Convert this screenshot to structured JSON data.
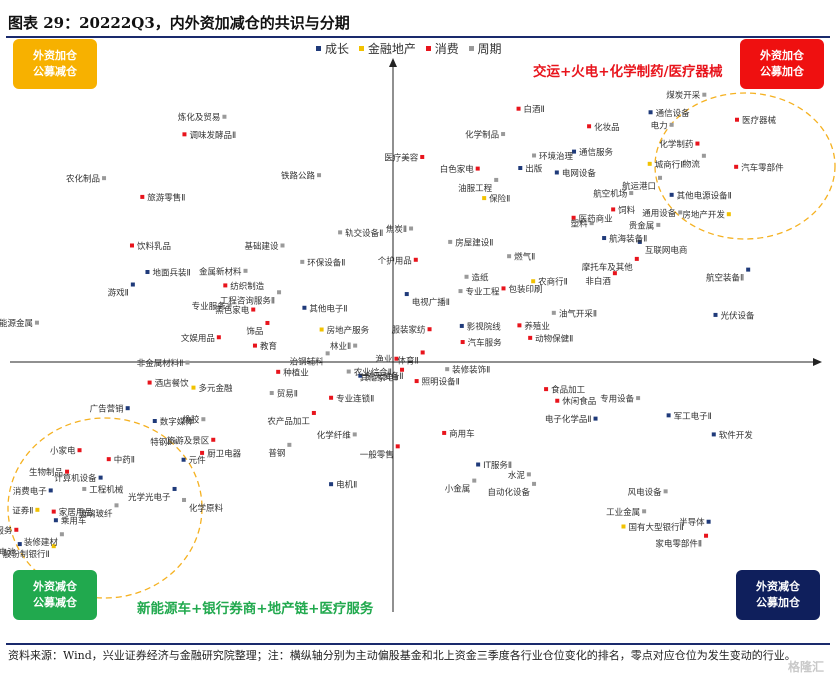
{
  "title": "图表 29：20222Q3，内外资加减仓的共识与分期",
  "legend": [
    {
      "label": "成长",
      "color": "#1f3a7a"
    },
    {
      "label": "金融地产",
      "color": "#f2c200"
    },
    {
      "label": "消费",
      "color": "#e8141c"
    },
    {
      "label": "周期",
      "color": "#9a9a9a"
    }
  ],
  "quadrants": {
    "top_left": {
      "line1": "外资加仓",
      "line2": "公募减仓",
      "color": "#f7b100"
    },
    "top_right": {
      "line1": "外资加仓",
      "line2": "公募加仓",
      "color": "#ef1010"
    },
    "bottom_left": {
      "line1": "外资减仓",
      "line2": "公募减仓",
      "color": "#21a94e"
    },
    "bottom_right": {
      "line1": "外资减仓",
      "line2": "公募加仓",
      "color": "#0f1f5c"
    }
  },
  "callouts": {
    "top": {
      "text": "交运+火电+化学制药/医疗器械",
      "color": "#e8141c"
    },
    "bottom": {
      "text": "新能源车+银行券商+地产链+医疗服务",
      "color": "#21a94e"
    }
  },
  "chart_data": {
    "type": "scatter",
    "xlabel": "",
    "ylabel": "",
    "xlim": [
      -100,
      100
    ],
    "ylim": [
      -100,
      100
    ],
    "grid": false,
    "legend_position": "top-center",
    "categories": [
      "成长",
      "金融地产",
      "消费",
      "周期"
    ],
    "points": [
      {
        "name": "炼化及贸易",
        "cat": "周期",
        "x": -39.2,
        "y": 82.3
      },
      {
        "name": "调味发酵品Ⅱ",
        "cat": "消费",
        "x": -48.5,
        "y": 76.4
      },
      {
        "name": "农化制品",
        "cat": "周期",
        "x": -67.2,
        "y": 61.7
      },
      {
        "name": "旅游零售Ⅱ",
        "cat": "消费",
        "x": -58.3,
        "y": 55.4
      },
      {
        "name": "铁路公路",
        "cat": "周期",
        "x": -17.2,
        "y": 62.7
      },
      {
        "name": "饮料乳品",
        "cat": "消费",
        "x": -60.7,
        "y": 39.1
      },
      {
        "name": "基础建设",
        "cat": "周期",
        "x": -25.7,
        "y": 39.1
      },
      {
        "name": "轨交设备Ⅱ",
        "cat": "周期",
        "x": -12.3,
        "y": 43.5
      },
      {
        "name": "环保设备Ⅱ",
        "cat": "周期",
        "x": -21.1,
        "y": 33.6
      },
      {
        "name": "地面兵装Ⅱ",
        "cat": "成长",
        "x": -57.1,
        "y": 30.2
      },
      {
        "name": "金属新材料",
        "cat": "周期",
        "x": -34.3,
        "y": 30.6
      },
      {
        "name": "游戏Ⅱ",
        "cat": "成长",
        "x": -60.5,
        "y": 26.0
      },
      {
        "name": "纺织制造",
        "cat": "消费",
        "x": -39.0,
        "y": 25.7
      },
      {
        "name": "工程咨询服务Ⅱ",
        "cat": "周期",
        "x": -26.5,
        "y": 23.4
      },
      {
        "name": "专业服务",
        "cat": "周期",
        "x": -38.0,
        "y": 19.0
      },
      {
        "name": "黑色家电",
        "cat": "消费",
        "x": -32.5,
        "y": 17.6
      },
      {
        "name": "其他电子Ⅱ",
        "cat": "成长",
        "x": -20.6,
        "y": 18.2
      },
      {
        "name": "饰品",
        "cat": "消费",
        "x": -29.2,
        "y": 13.1
      },
      {
        "name": "能源金属",
        "cat": "周期",
        "x": -82.8,
        "y": 13.2
      },
      {
        "name": "房地产服务",
        "cat": "金融地产",
        "x": -16.6,
        "y": 10.9
      },
      {
        "name": "文娱用品",
        "cat": "消费",
        "x": -40.5,
        "y": 8.3
      },
      {
        "name": "教育",
        "cat": "消费",
        "x": -32.1,
        "y": 5.5
      },
      {
        "name": "林业Ⅱ",
        "cat": "周期",
        "x": -8.8,
        "y": 5.5
      },
      {
        "name": "治钢辅料",
        "cat": "周期",
        "x": -15.2,
        "y": 2.9
      },
      {
        "name": "非金属材料Ⅱ",
        "cat": "周期",
        "x": -47.8,
        "y": -0.2
      },
      {
        "name": "渔业",
        "cat": "消费",
        "x": 0.8,
        "y": 1.1
      },
      {
        "name": "种植业",
        "cat": "消费",
        "x": -26.7,
        "y": -3.3
      },
      {
        "name": "酒店餐饮",
        "cat": "消费",
        "x": -56.6,
        "y": -6.9
      },
      {
        "name": "多元金融",
        "cat": "金融地产",
        "x": -46.4,
        "y": -8.6
      },
      {
        "name": "农业综合Ⅱ",
        "cat": "周期",
        "x": -10.3,
        "y": -3.2
      },
      {
        "name": "航天装备Ⅱ",
        "cat": "成长",
        "x": -7.6,
        "y": -4.6
      },
      {
        "name": "贸易Ⅱ",
        "cat": "周期",
        "x": -28.2,
        "y": -10.4
      },
      {
        "name": "专业连锁Ⅱ",
        "cat": "消费",
        "x": -14.4,
        "y": -12.0
      },
      {
        "name": "农产品加工",
        "cat": "消费",
        "x": -18.4,
        "y": -17.1
      },
      {
        "name": "广告营销",
        "cat": "成长",
        "x": -61.7,
        "y": -15.5
      },
      {
        "name": "数字媒体",
        "cat": "成长",
        "x": -55.4,
        "y": -19.8
      },
      {
        "name": "橡胶",
        "cat": "周期",
        "x": -44.1,
        "y": -19.2
      },
      {
        "name": "特钢Ⅱ",
        "cat": "周期",
        "x": -50.6,
        "y": -26.7
      },
      {
        "name": "旅游及景区",
        "cat": "消费",
        "x": -41.8,
        "y": -26.1
      },
      {
        "name": "化学纤维",
        "cat": "周期",
        "x": -8.9,
        "y": -24.3
      },
      {
        "name": "普钢",
        "cat": "周期",
        "x": -24.1,
        "y": -27.8
      },
      {
        "name": "厨卫电器",
        "cat": "消费",
        "x": -44.4,
        "y": -30.5
      },
      {
        "name": "元件",
        "cat": "成长",
        "x": -48.7,
        "y": -32.8
      },
      {
        "name": "小家电",
        "cat": "消费",
        "x": -72.9,
        "y": -29.6
      },
      {
        "name": "中药Ⅱ",
        "cat": "消费",
        "x": -66.1,
        "y": -32.6
      },
      {
        "name": "生物制品",
        "cat": "消费",
        "x": -75.8,
        "y": -36.8
      },
      {
        "name": "计算机设备",
        "cat": "成长",
        "x": -68.0,
        "y": -38.8
      },
      {
        "name": "消费电子",
        "cat": "成长",
        "x": -79.6,
        "y": -43.1
      },
      {
        "name": "工程机械",
        "cat": "周期",
        "x": -71.8,
        "y": -42.6
      },
      {
        "name": "光学光电子",
        "cat": "成长",
        "x": -50.8,
        "y": -42.6
      },
      {
        "name": "化学原料",
        "cat": "周期",
        "x": -48.6,
        "y": -46.3
      },
      {
        "name": "玻璃玻纤",
        "cat": "周期",
        "x": -64.3,
        "y": -48.1
      },
      {
        "name": "证券Ⅱ",
        "cat": "金融地产",
        "x": -82.7,
        "y": -49.6
      },
      {
        "name": "家居用品",
        "cat": "消费",
        "x": -78.9,
        "y": -50.2
      },
      {
        "name": "乘用车",
        "cat": "成长",
        "x": -78.4,
        "y": -53.1
      },
      {
        "name": "医疗服务",
        "cat": "消费",
        "x": -87.6,
        "y": -56.3
      },
      {
        "name": "装修建材",
        "cat": "周期",
        "x": -77.0,
        "y": -57.8
      },
      {
        "name": "电池",
        "cat": "成长",
        "x": -86.8,
        "y": -61.1
      },
      {
        "name": "股份制银行Ⅱ",
        "cat": "金融地产",
        "x": -78.9,
        "y": -61.8
      },
      {
        "name": "电机Ⅱ",
        "cat": "成长",
        "x": -14.4,
        "y": -41.0
      },
      {
        "name": "白酒Ⅱ",
        "cat": "消费",
        "x": 29.2,
        "y": 85.0
      },
      {
        "name": "化学制品",
        "cat": "周期",
        "x": 25.6,
        "y": 76.5
      },
      {
        "name": "化妆品",
        "cat": "消费",
        "x": 45.6,
        "y": 79.1
      },
      {
        "name": "通信服务",
        "cat": "成长",
        "x": 42.1,
        "y": 70.6
      },
      {
        "name": "白色家电",
        "cat": "消费",
        "x": 19.7,
        "y": 64.9
      },
      {
        "name": "医疗美容",
        "cat": "消费",
        "x": 6.8,
        "y": 68.8
      },
      {
        "name": "出版",
        "cat": "成长",
        "x": 29.6,
        "y": 65.1
      },
      {
        "name": "环境治理",
        "cat": "周期",
        "x": 32.8,
        "y": 69.3
      },
      {
        "name": "电网设备",
        "cat": "成长",
        "x": 38.1,
        "y": 63.6
      },
      {
        "name": "油服工程",
        "cat": "周期",
        "x": 24.0,
        "y": 61.1
      },
      {
        "name": "保险Ⅱ",
        "cat": "金融地产",
        "x": 21.2,
        "y": 55.0
      },
      {
        "name": "航空机场",
        "cat": "周期",
        "x": 55.4,
        "y": 56.7
      },
      {
        "name": "医药商业",
        "cat": "消费",
        "x": 42.0,
        "y": 48.4
      },
      {
        "name": "饲料",
        "cat": "消费",
        "x": 51.2,
        "y": 51.2
      },
      {
        "name": "塑料",
        "cat": "周期",
        "x": 46.2,
        "y": 46.6
      },
      {
        "name": "航海装备Ⅱ",
        "cat": "成长",
        "x": 49.1,
        "y": 41.6
      },
      {
        "name": "焦炭Ⅱ",
        "cat": "周期",
        "x": 4.2,
        "y": 44.8
      },
      {
        "name": "房屋建设Ⅱ",
        "cat": "周期",
        "x": 13.3,
        "y": 40.3
      },
      {
        "name": "个护用品",
        "cat": "消费",
        "x": 5.3,
        "y": 34.3
      },
      {
        "name": "燃气Ⅱ",
        "cat": "周期",
        "x": 27.0,
        "y": 35.5
      },
      {
        "name": "非白酒",
        "cat": "消费",
        "x": 51.6,
        "y": 29.8
      },
      {
        "name": "造纸",
        "cat": "周期",
        "x": 17.1,
        "y": 28.6
      },
      {
        "name": "农商行Ⅱ",
        "cat": "金融地产",
        "x": 32.6,
        "y": 27.1
      },
      {
        "name": "电视广播Ⅱ",
        "cat": "成长",
        "x": 3.2,
        "y": 22.8
      },
      {
        "name": "专业工程",
        "cat": "周期",
        "x": 15.7,
        "y": 23.8
      },
      {
        "name": "包装印刷",
        "cat": "消费",
        "x": 25.7,
        "y": 24.7
      },
      {
        "name": "油气开采Ⅱ",
        "cat": "周期",
        "x": 37.4,
        "y": 16.5
      },
      {
        "name": "服装家纺",
        "cat": "消费",
        "x": 8.5,
        "y": 11.0
      },
      {
        "name": "影视院线",
        "cat": "成长",
        "x": 16.0,
        "y": 12.1
      },
      {
        "name": "养殖业",
        "cat": "消费",
        "x": 29.4,
        "y": 12.3
      },
      {
        "name": "汽车服务",
        "cat": "消费",
        "x": 16.2,
        "y": 6.7
      },
      {
        "name": "动物保健Ⅱ",
        "cat": "消费",
        "x": 31.9,
        "y": 8.1
      },
      {
        "name": "体育Ⅱ",
        "cat": "消费",
        "x": 6.9,
        "y": 3.2
      },
      {
        "name": "其他家电Ⅱ",
        "cat": "消费",
        "x": 2.1,
        "y": -2.6
      },
      {
        "name": "装修装饰Ⅱ",
        "cat": "周期",
        "x": 12.6,
        "y": -2.4
      },
      {
        "name": "照明设备Ⅱ",
        "cat": "消费",
        "x": 5.5,
        "y": -6.4
      },
      {
        "name": "食品加工",
        "cat": "消费",
        "x": 35.6,
        "y": -9.1
      },
      {
        "name": "休闲食品",
        "cat": "消费",
        "x": 38.2,
        "y": -13.0
      },
      {
        "name": "专用设备",
        "cat": "周期",
        "x": 57.0,
        "y": -12.1
      },
      {
        "name": "电子化学品Ⅱ",
        "cat": "成长",
        "x": 47.1,
        "y": -19.0
      },
      {
        "name": "军工电子Ⅱ",
        "cat": "成长",
        "x": 64.1,
        "y": -17.9
      },
      {
        "name": "软件开发",
        "cat": "成长",
        "x": 74.6,
        "y": -24.3
      },
      {
        "name": "商用车",
        "cat": "消费",
        "x": 11.9,
        "y": -23.8
      },
      {
        "name": "一般零售",
        "cat": "消费",
        "x": 1.1,
        "y": -28.3
      },
      {
        "name": "IT服务Ⅱ",
        "cat": "成长",
        "x": 19.8,
        "y": -34.4
      },
      {
        "name": "水泥",
        "cat": "周期",
        "x": 31.6,
        "y": -37.7
      },
      {
        "name": "小金属",
        "cat": "周期",
        "x": 18.9,
        "y": -39.8
      },
      {
        "name": "自动化设备",
        "cat": "周期",
        "x": 32.8,
        "y": -40.9
      },
      {
        "name": "风电设备",
        "cat": "周期",
        "x": 63.4,
        "y": -43.4
      },
      {
        "name": "工业金属",
        "cat": "周期",
        "x": 58.4,
        "y": -50.1
      },
      {
        "name": "半导体",
        "cat": "成长",
        "x": 73.4,
        "y": -53.6
      },
      {
        "name": "国有大型银行Ⅱ",
        "cat": "金融地产",
        "x": 53.6,
        "y": -55.2
      },
      {
        "name": "家电零部件Ⅱ",
        "cat": "消费",
        "x": 72.8,
        "y": -58.3
      },
      {
        "name": "煤炭开采",
        "cat": "周期",
        "x": 72.4,
        "y": 89.7
      },
      {
        "name": "通信设备",
        "cat": "成长",
        "x": 59.9,
        "y": 83.8
      },
      {
        "name": "医疗器械",
        "cat": "消费",
        "x": 80.0,
        "y": 81.3
      },
      {
        "name": "电力",
        "cat": "周期",
        "x": 64.8,
        "y": 79.6
      },
      {
        "name": "化学制药",
        "cat": "消费",
        "x": 70.8,
        "y": 73.3
      },
      {
        "name": "物流",
        "cat": "周期",
        "x": 72.3,
        "y": 69.2
      },
      {
        "name": "城商行Ⅱ",
        "cat": "金融地产",
        "x": 59.7,
        "y": 66.5
      },
      {
        "name": "汽车零部件",
        "cat": "消费",
        "x": 79.8,
        "y": 65.5
      },
      {
        "name": "航运港口",
        "cat": "周期",
        "x": 62.1,
        "y": 61.8
      },
      {
        "name": "其他电源设备Ⅱ",
        "cat": "成长",
        "x": 64.8,
        "y": 56.1
      },
      {
        "name": "通用设备",
        "cat": "周期",
        "x": 66.8,
        "y": 50.2
      },
      {
        "name": "贵金属",
        "cat": "周期",
        "x": 61.7,
        "y": 46.0
      },
      {
        "name": "房地产开发",
        "cat": "金融地产",
        "x": 78.1,
        "y": 49.6
      },
      {
        "name": "互联网电商",
        "cat": "成长",
        "x": 57.4,
        "y": 40.3
      },
      {
        "name": "摩托车及其他",
        "cat": "消费",
        "x": 56.7,
        "y": 34.6
      },
      {
        "name": "航空装备Ⅱ",
        "cat": "成长",
        "x": 82.6,
        "y": 31.0
      },
      {
        "name": "光伏设备",
        "cat": "成长",
        "x": 75.0,
        "y": 15.8
      }
    ]
  },
  "footer": {
    "text": "资料来源：Wind，兴业证券经济与金融研究院整理；注：横纵轴分别为主动偏股基金和北上资金三季度各行业仓位变化的排名，零点对应仓位为发生变动的行业。"
  },
  "watermark": "格隆汇"
}
